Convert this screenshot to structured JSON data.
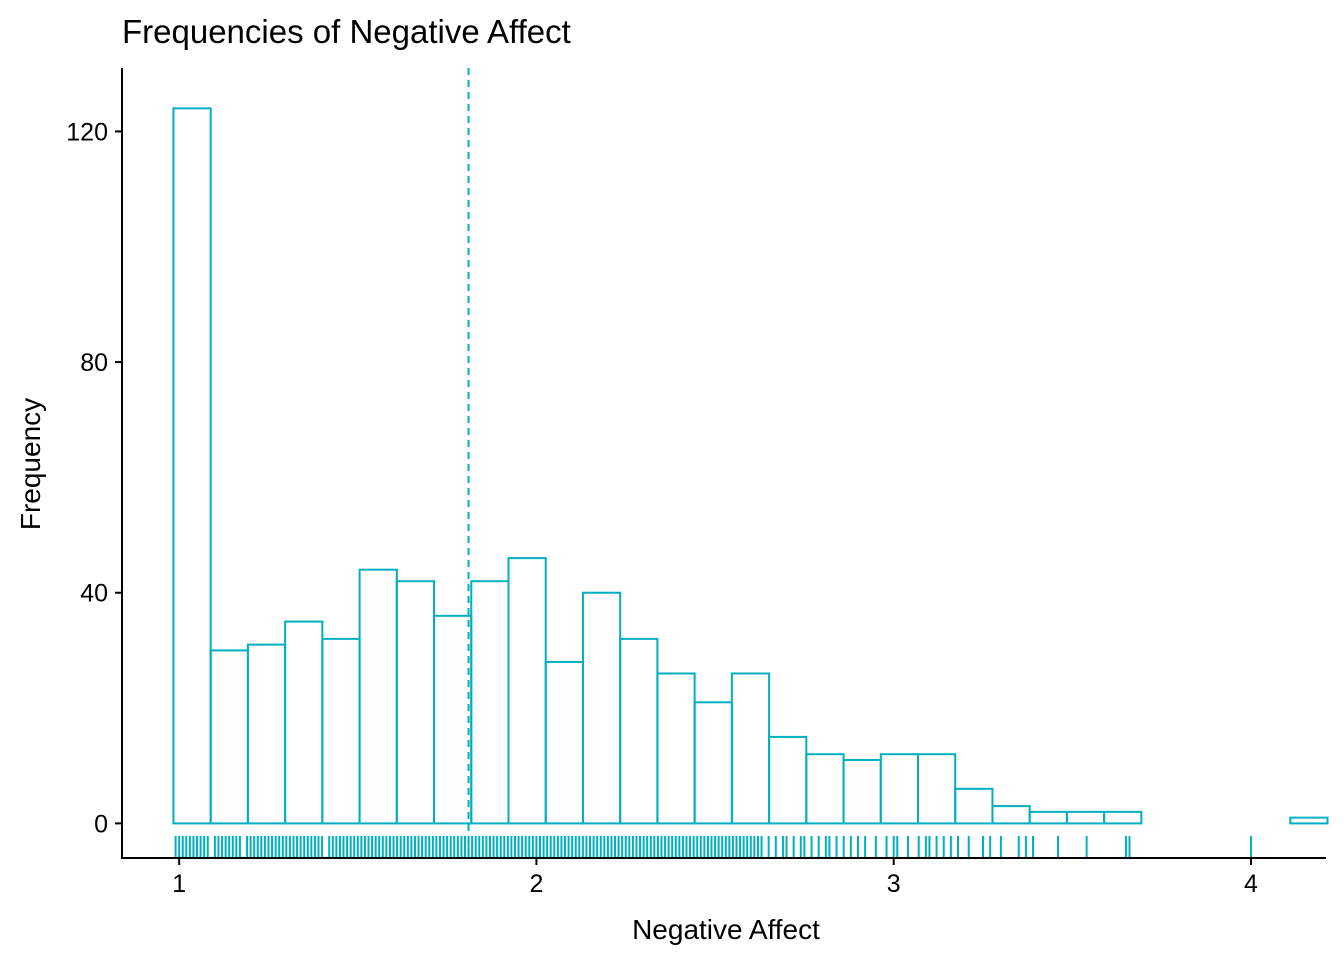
{
  "chart_data": {
    "type": "bar",
    "title": "Frequencies of Negative Affect",
    "xlabel": "Negative Affect",
    "ylabel": "Frequency",
    "xlim": [
      0.84,
      4.21
    ],
    "ylim": [
      -6,
      131
    ],
    "x_ticks": [
      1,
      2,
      3,
      4
    ],
    "y_ticks": [
      0,
      40,
      80,
      120
    ],
    "bin_width": 0.1042,
    "bin_start": 0.984,
    "counts": [
      124,
      30,
      31,
      35,
      32,
      44,
      42,
      36,
      42,
      46,
      28,
      40,
      32,
      26,
      21,
      26,
      15,
      12,
      11,
      12,
      12,
      6,
      3,
      2,
      2,
      2,
      0,
      0,
      0,
      0,
      1
    ],
    "mean_line": 1.81,
    "rug_values": [
      0.99,
      1.0,
      1.01,
      1.02,
      1.03,
      1.04,
      1.05,
      1.06,
      1.07,
      1.08,
      1.1,
      1.11,
      1.12,
      1.13,
      1.14,
      1.15,
      1.16,
      1.17,
      1.19,
      1.2,
      1.21,
      1.22,
      1.23,
      1.24,
      1.25,
      1.26,
      1.27,
      1.28,
      1.29,
      1.3,
      1.31,
      1.32,
      1.33,
      1.34,
      1.35,
      1.36,
      1.37,
      1.38,
      1.39,
      1.4,
      1.42,
      1.43,
      1.44,
      1.45,
      1.46,
      1.47,
      1.48,
      1.49,
      1.5,
      1.51,
      1.52,
      1.53,
      1.54,
      1.55,
      1.56,
      1.57,
      1.58,
      1.59,
      1.6,
      1.61,
      1.62,
      1.63,
      1.64,
      1.65,
      1.66,
      1.67,
      1.68,
      1.69,
      1.7,
      1.71,
      1.72,
      1.73,
      1.74,
      1.75,
      1.76,
      1.77,
      1.78,
      1.79,
      1.8,
      1.81,
      1.82,
      1.83,
      1.84,
      1.85,
      1.86,
      1.87,
      1.88,
      1.89,
      1.9,
      1.91,
      1.92,
      1.93,
      1.94,
      1.95,
      1.96,
      1.97,
      1.98,
      1.99,
      2.0,
      2.01,
      2.02,
      2.03,
      2.04,
      2.05,
      2.06,
      2.07,
      2.08,
      2.09,
      2.1,
      2.11,
      2.12,
      2.13,
      2.14,
      2.15,
      2.16,
      2.17,
      2.18,
      2.19,
      2.2,
      2.21,
      2.22,
      2.23,
      2.24,
      2.25,
      2.26,
      2.27,
      2.28,
      2.29,
      2.3,
      2.31,
      2.32,
      2.33,
      2.34,
      2.35,
      2.36,
      2.37,
      2.38,
      2.39,
      2.4,
      2.41,
      2.42,
      2.43,
      2.44,
      2.45,
      2.46,
      2.47,
      2.48,
      2.49,
      2.5,
      2.51,
      2.52,
      2.53,
      2.54,
      2.55,
      2.56,
      2.57,
      2.58,
      2.59,
      2.6,
      2.61,
      2.62,
      2.63,
      2.65,
      2.67,
      2.69,
      2.7,
      2.72,
      2.74,
      2.75,
      2.77,
      2.79,
      2.81,
      2.82,
      2.84,
      2.86,
      2.88,
      2.9,
      2.92,
      2.95,
      2.98,
      3.0,
      3.01,
      3.04,
      3.07,
      3.09,
      3.1,
      3.12,
      3.14,
      3.16,
      3.18,
      3.21,
      3.25,
      3.27,
      3.3,
      3.35,
      3.37,
      3.39,
      3.46,
      3.54,
      3.65,
      3.66,
      4.0
    ],
    "color": "#00B0C0"
  }
}
